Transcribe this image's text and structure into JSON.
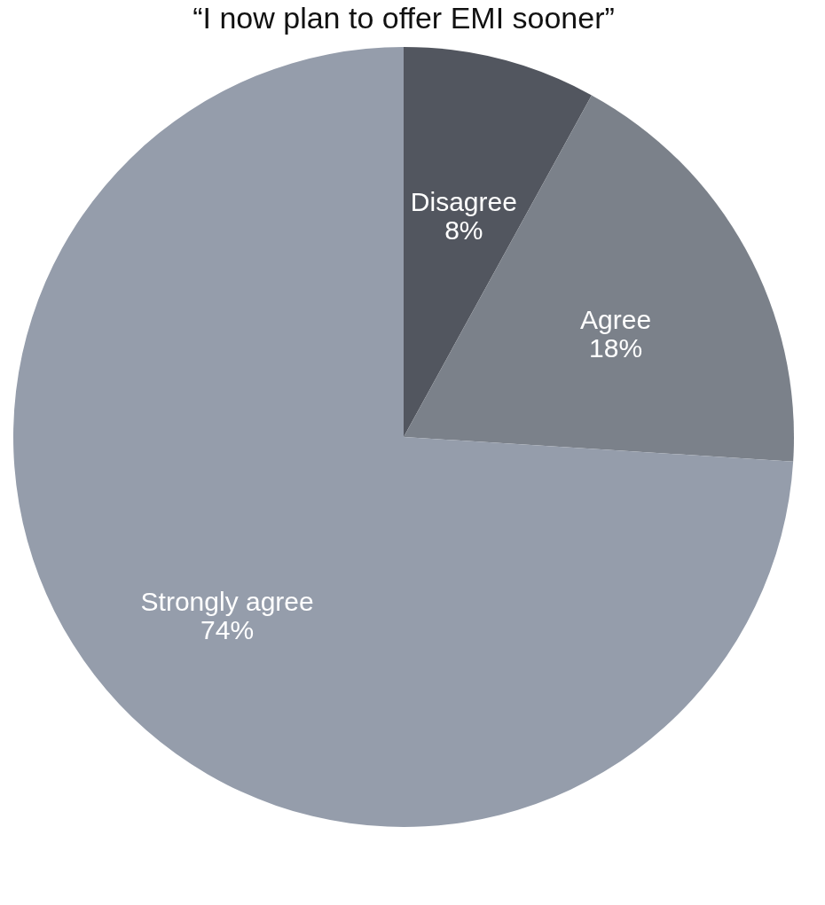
{
  "chart_data": {
    "type": "pie",
    "title": "“I now plan to offer EMI sooner”",
    "categories": [
      "Disagree",
      "Agree",
      "Strongly agree"
    ],
    "values": [
      8,
      18,
      74
    ],
    "value_labels": [
      "8%",
      "18%",
      "74%"
    ],
    "colors": [
      "#52565f",
      "#7b818a",
      "#959dab"
    ],
    "legend": false
  }
}
